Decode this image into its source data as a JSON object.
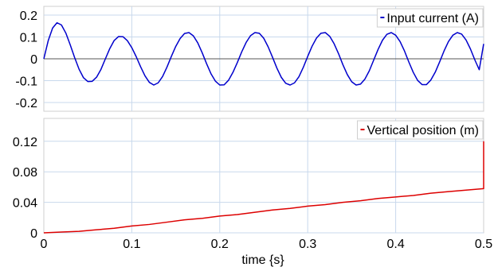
{
  "chart_data": [
    {
      "type": "line",
      "xlim": [
        0,
        0.5
      ],
      "ylim": [
        -0.24,
        0.24
      ],
      "y_ticks": [
        "0.2",
        "0.1",
        "0",
        "-0.1",
        "-0.2"
      ],
      "y_tick_values": [
        0.2,
        0.1,
        0,
        -0.1,
        -0.2
      ],
      "grid": true,
      "legend_placement": "top-right",
      "series": [
        {
          "name": "Input current (A)",
          "color": "#0000cc",
          "x": [
            0.0,
            0.005,
            0.01,
            0.015,
            0.02,
            0.025,
            0.03,
            0.035,
            0.04,
            0.045,
            0.05,
            0.055,
            0.06,
            0.065,
            0.07,
            0.075,
            0.08,
            0.085,
            0.09,
            0.095,
            0.1,
            0.105,
            0.11,
            0.115,
            0.12,
            0.125,
            0.13,
            0.135,
            0.14,
            0.145,
            0.15,
            0.155,
            0.16,
            0.165,
            0.17,
            0.175,
            0.18,
            0.185,
            0.19,
            0.195,
            0.2,
            0.205,
            0.21,
            0.215,
            0.22,
            0.225,
            0.23,
            0.235,
            0.24,
            0.245,
            0.25,
            0.255,
            0.26,
            0.265,
            0.27,
            0.275,
            0.28,
            0.285,
            0.29,
            0.295,
            0.3,
            0.305,
            0.31,
            0.315,
            0.32,
            0.325,
            0.33,
            0.335,
            0.34,
            0.345,
            0.35,
            0.355,
            0.36,
            0.365,
            0.37,
            0.375,
            0.38,
            0.385,
            0.39,
            0.395,
            0.4,
            0.405,
            0.41,
            0.415,
            0.42,
            0.425,
            0.43,
            0.435,
            0.44,
            0.445,
            0.45,
            0.455,
            0.46,
            0.465,
            0.47,
            0.475,
            0.48,
            0.485,
            0.49,
            0.495,
            0.5
          ],
          "values": [
            0.0,
            0.083,
            0.141,
            0.165,
            0.155,
            0.118,
            0.064,
            0.006,
            -0.047,
            -0.086,
            -0.104,
            -0.103,
            -0.084,
            -0.048,
            0.0,
            0.047,
            0.084,
            0.102,
            0.101,
            0.083,
            0.051,
            0.01,
            -0.036,
            -0.078,
            -0.108,
            -0.12,
            -0.11,
            -0.081,
            -0.038,
            0.011,
            0.057,
            0.093,
            0.116,
            0.12,
            0.105,
            0.073,
            0.028,
            -0.022,
            -0.068,
            -0.102,
            -0.12,
            -0.119,
            -0.098,
            -0.062,
            -0.017,
            0.032,
            0.075,
            0.106,
            0.12,
            0.117,
            0.094,
            0.055,
            0.007,
            -0.043,
            -0.085,
            -0.112,
            -0.12,
            -0.11,
            -0.082,
            -0.039,
            0.011,
            0.058,
            0.095,
            0.117,
            0.12,
            0.103,
            0.069,
            0.024,
            -0.027,
            -0.072,
            -0.105,
            -0.12,
            -0.116,
            -0.093,
            -0.055,
            -0.006,
            0.043,
            0.085,
            0.112,
            0.12,
            0.108,
            0.079,
            0.036,
            -0.015,
            -0.062,
            -0.099,
            -0.118,
            -0.118,
            -0.097,
            -0.061,
            -0.014,
            0.036,
            0.079,
            0.108,
            0.12,
            0.113,
            0.086,
            0.045,
            -0.005,
            -0.05,
            0.068
          ]
        }
      ]
    },
    {
      "type": "line",
      "xlim": [
        0,
        0.5
      ],
      "ylim": [
        0,
        0.15
      ],
      "x_ticks": [
        "0",
        "0.1",
        "0.2",
        "0.3",
        "0.4",
        "0.5"
      ],
      "x_tick_values": [
        0,
        0.1,
        0.2,
        0.3,
        0.4,
        0.5
      ],
      "y_ticks": [
        "0.12",
        "0.08",
        "0.04",
        "0"
      ],
      "y_tick_values": [
        0.12,
        0.08,
        0.04,
        0
      ],
      "xlabel": "time {s}",
      "grid": true,
      "legend_placement": "top-right",
      "series": [
        {
          "name": "Vertical position (m)",
          "color": "#dd0000",
          "x": [
            0.0,
            0.02,
            0.04,
            0.06,
            0.08,
            0.1,
            0.12,
            0.14,
            0.16,
            0.18,
            0.2,
            0.22,
            0.24,
            0.26,
            0.28,
            0.3,
            0.32,
            0.34,
            0.36,
            0.38,
            0.4,
            0.42,
            0.44,
            0.46,
            0.48,
            0.5,
            0.5
          ],
          "values": [
            0.0,
            0.001,
            0.002,
            0.004,
            0.006,
            0.009,
            0.011,
            0.014,
            0.017,
            0.019,
            0.022,
            0.024,
            0.027,
            0.03,
            0.032,
            0.035,
            0.037,
            0.04,
            0.042,
            0.045,
            0.047,
            0.049,
            0.052,
            0.054,
            0.056,
            0.058,
            0.12
          ]
        }
      ]
    }
  ]
}
